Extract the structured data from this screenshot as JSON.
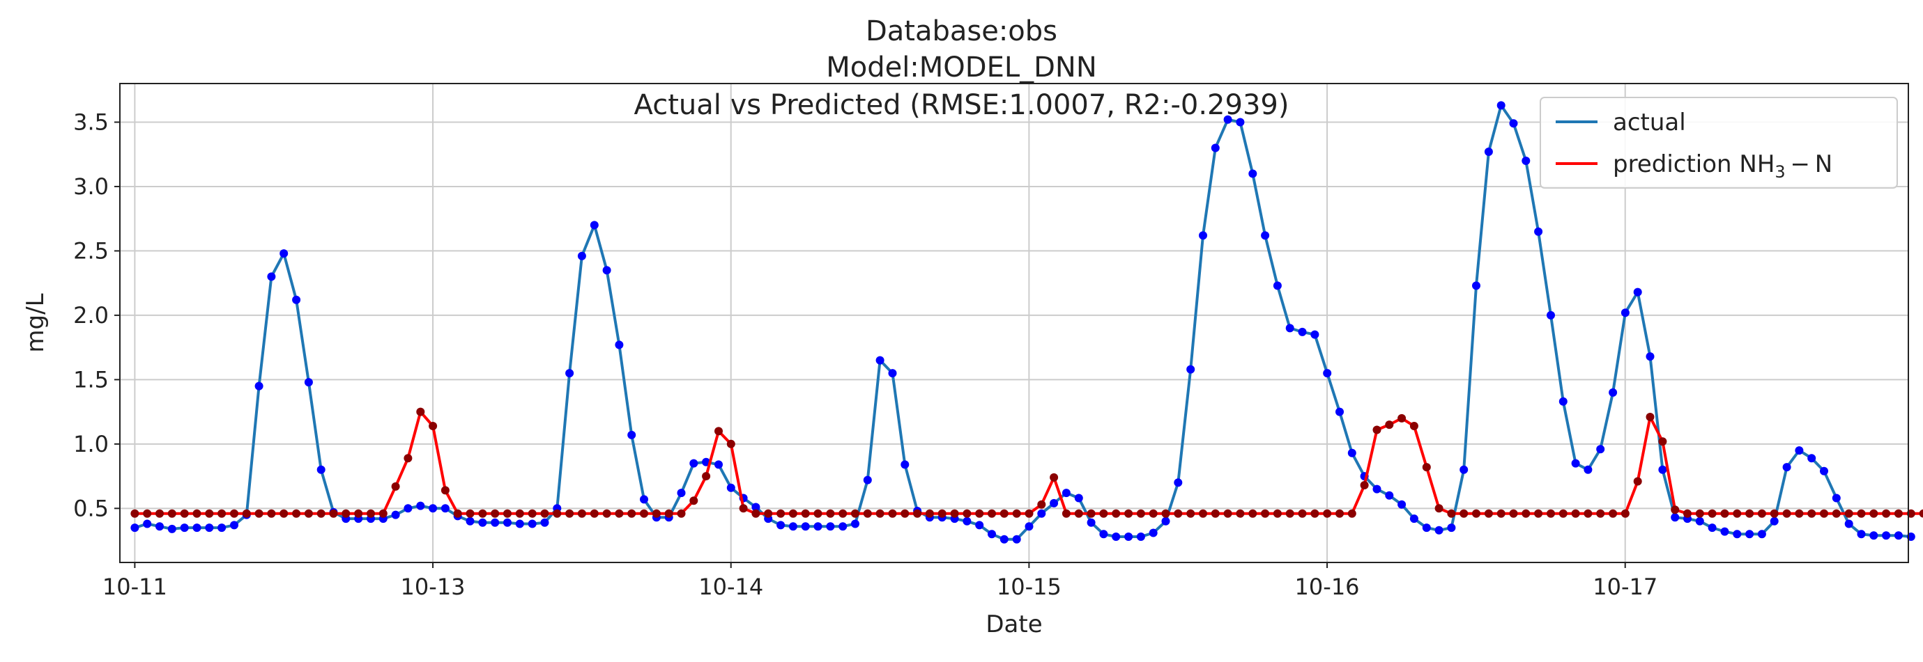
{
  "chart_data": {
    "type": "line",
    "title_lines": [
      "Database:obs",
      "Model:MODEL_DNN",
      "Actual vs Predicted (RMSE:1.0007, R2:-0.2939)"
    ],
    "xlabel": "Date",
    "ylabel": "mg/L",
    "ylim": [
      0.08,
      3.8
    ],
    "xlim": [
      -0.05,
      5.95
    ],
    "y_ticks": [
      0.5,
      1.0,
      1.5,
      2.0,
      2.5,
      3.0,
      3.5
    ],
    "y_tick_labels": [
      "0.5",
      "1.0",
      "1.5",
      "2.0",
      "2.5",
      "3.0",
      "3.5"
    ],
    "x_ticks": [
      0,
      1,
      2,
      3,
      4,
      5
    ],
    "x_tick_labels": [
      "10-11",
      "10-13",
      "10-14",
      "10-15",
      "10-16",
      "10-17"
    ],
    "grid": true,
    "legend_position": "top-right",
    "colors": {
      "actual_line": "#1f77b4",
      "actual_points": "#0000ff",
      "prediction_line": "#ff0000",
      "prediction_points": "#8b0000"
    },
    "series": [
      {
        "name": "actual",
        "x_step": 0.04167,
        "values": [
          0.35,
          0.38,
          0.36,
          0.34,
          0.35,
          0.35,
          0.35,
          0.35,
          0.37,
          0.45,
          1.45,
          2.3,
          2.48,
          2.12,
          1.48,
          0.8,
          0.47,
          0.42,
          0.42,
          0.42,
          0.42,
          0.45,
          0.5,
          0.52,
          0.5,
          0.5,
          0.44,
          0.4,
          0.39,
          0.39,
          0.39,
          0.38,
          0.38,
          0.39,
          0.5,
          1.55,
          2.46,
          2.7,
          2.35,
          1.77,
          1.07,
          0.57,
          0.43,
          0.43,
          0.62,
          0.85,
          0.86,
          0.84,
          0.66,
          0.58,
          0.51,
          0.42,
          0.37,
          0.36,
          0.36,
          0.36,
          0.36,
          0.36,
          0.38,
          0.72,
          1.65,
          1.55,
          0.84,
          0.48,
          0.43,
          0.43,
          0.42,
          0.4,
          0.37,
          0.3,
          0.26,
          0.26,
          0.36,
          0.46,
          0.54,
          0.62,
          0.58,
          0.39,
          0.3,
          0.28,
          0.28,
          0.28,
          0.31,
          0.4,
          0.7,
          1.58,
          2.62,
          3.3,
          3.52,
          3.5,
          3.1,
          2.62,
          2.23,
          1.9,
          1.87,
          1.85,
          1.55,
          1.25,
          0.93,
          0.75,
          0.65,
          0.6,
          0.53,
          0.42,
          0.35,
          0.33,
          0.35,
          0.8,
          2.23,
          3.27,
          3.63,
          3.49,
          3.2,
          2.65,
          2.0,
          1.33,
          0.85,
          0.8,
          0.96,
          1.4,
          2.02,
          2.18,
          1.68,
          0.8,
          0.43,
          0.42,
          0.4,
          0.35,
          0.32,
          0.3,
          0.3,
          0.3,
          0.4,
          0.82,
          0.95,
          0.89,
          0.79,
          0.58,
          0.38,
          0.3,
          0.29,
          0.29,
          0.29,
          0.28
        ]
      },
      {
        "name": "prediction NH3-N",
        "x_step": 0.04167,
        "values": [
          0.46,
          0.46,
          0.46,
          0.46,
          0.46,
          0.46,
          0.46,
          0.46,
          0.46,
          0.46,
          0.46,
          0.46,
          0.46,
          0.46,
          0.46,
          0.46,
          0.46,
          0.46,
          0.46,
          0.46,
          0.46,
          0.67,
          0.89,
          1.25,
          1.14,
          0.64,
          0.46,
          0.46,
          0.46,
          0.46,
          0.46,
          0.46,
          0.46,
          0.46,
          0.46,
          0.46,
          0.46,
          0.46,
          0.46,
          0.46,
          0.46,
          0.46,
          0.46,
          0.46,
          0.46,
          0.56,
          0.75,
          1.1,
          1.0,
          0.5,
          0.46,
          0.46,
          0.46,
          0.46,
          0.46,
          0.46,
          0.46,
          0.46,
          0.46,
          0.46,
          0.46,
          0.46,
          0.46,
          0.46,
          0.46,
          0.46,
          0.46,
          0.46,
          0.46,
          0.46,
          0.46,
          0.46,
          0.46,
          0.53,
          0.74,
          0.46,
          0.46,
          0.46,
          0.46,
          0.46,
          0.46,
          0.46,
          0.46,
          0.46,
          0.46,
          0.46,
          0.46,
          0.46,
          0.46,
          0.46,
          0.46,
          0.46,
          0.46,
          0.46,
          0.46,
          0.46,
          0.46,
          0.46,
          0.46,
          0.68,
          1.11,
          1.15,
          1.2,
          1.14,
          0.82,
          0.5,
          0.46,
          0.46,
          0.46,
          0.46,
          0.46,
          0.46,
          0.46,
          0.46,
          0.46,
          0.46,
          0.46,
          0.46,
          0.46,
          0.46,
          0.46,
          0.71,
          1.21,
          1.02,
          0.49,
          0.46,
          0.46,
          0.46,
          0.46,
          0.46,
          0.46,
          0.46,
          0.46,
          0.46,
          0.46,
          0.46,
          0.46,
          0.46,
          0.46,
          0.46,
          0.46,
          0.46,
          0.46,
          0.46,
          0.46,
          0.46
        ]
      }
    ]
  }
}
